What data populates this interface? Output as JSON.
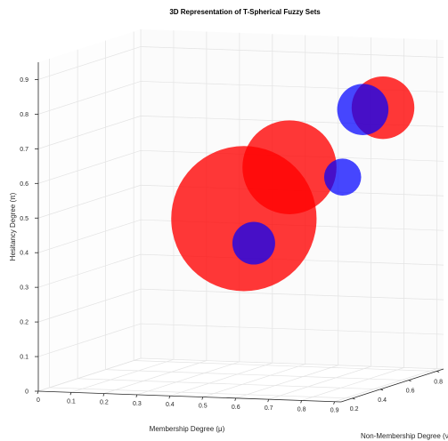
{
  "chart_data": {
    "type": "scatter",
    "title": "3D Representation of T-Spherical Fuzzy Sets",
    "xlabel": "Membership Degree (μ)",
    "ylabel": "Non-Membership Degree (ν)",
    "zlabel": "Hesitancy Degree (π)",
    "x_ticks": [
      "0",
      "0.1",
      "0.2",
      "0.3",
      "0.4",
      "0.5",
      "0.6",
      "0.7",
      "0.8",
      "0.9"
    ],
    "y_ticks": [
      "0.2",
      "0.4",
      "0.6",
      "0.8"
    ],
    "z_ticks": [
      "0",
      "0.1",
      "0.2",
      "0.3",
      "0.4",
      "0.5",
      "0.6",
      "0.7",
      "0.8",
      "0.9"
    ],
    "xlim": [
      0,
      0.92
    ],
    "ylim": [
      0.12,
      0.85
    ],
    "zlim": [
      0,
      0.95
    ],
    "grid": true,
    "colors": {
      "red": "#ff0000",
      "blue": "#0000ff"
    },
    "points": [
      {
        "x": 0.42,
        "y": 0.6,
        "z": 0.45,
        "size": 0.51,
        "color": "red"
      },
      {
        "x": 0.55,
        "y": 0.62,
        "z": 0.6,
        "size": 0.33,
        "color": "red"
      },
      {
        "x": 0.8,
        "y": 0.7,
        "z": 0.77,
        "size": 0.22,
        "color": "red"
      },
      {
        "x": 0.45,
        "y": 0.6,
        "z": 0.38,
        "size": 0.15,
        "color": "blue"
      },
      {
        "x": 0.72,
        "y": 0.6,
        "z": 0.58,
        "size": 0.13,
        "color": "blue"
      },
      {
        "x": 0.76,
        "y": 0.65,
        "z": 0.77,
        "size": 0.18,
        "color": "blue"
      }
    ]
  }
}
